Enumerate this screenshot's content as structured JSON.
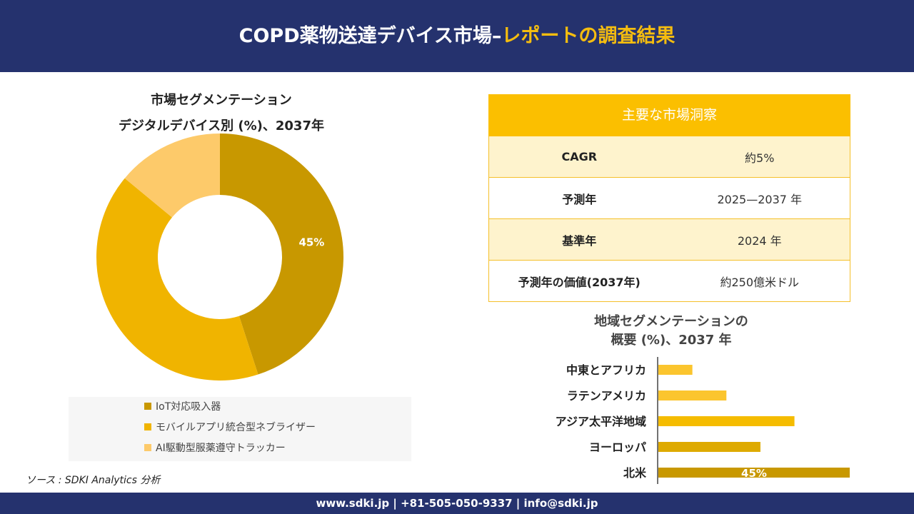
{
  "header": {
    "title_main": "COPD薬物送達デバイス市場–",
    "title_accent": "レポートの調査結果"
  },
  "donut": {
    "title_line1": "市場セグメンテーション",
    "title_line2": "デジタルデバイス別 (%)、2037年"
  },
  "legend": [
    "IoT対応吸入器",
    "モバイルアプリ統合型ネブライザー",
    "AI駆動型服薬遵守トラッカー"
  ],
  "insights": {
    "heading": "主要な市場洞察",
    "rows": [
      {
        "key": "CAGR",
        "value": "約5%"
      },
      {
        "key": "予測年",
        "value": "2025—2037 年"
      },
      {
        "key": "基準年",
        "value": "2024 年"
      },
      {
        "key": "予測年の価値(2037年)",
        "value": "約250億米ドル"
      }
    ]
  },
  "region": {
    "title_line1": "地域セグメンテーションの",
    "title_line2": "概要 (%)、2037 年"
  },
  "source": "ソース : SDKI Analytics 分析",
  "footer": "www.sdki.jp | +81-505-050-9337 | info@sdki.jp",
  "colors": {
    "header_bg": "#25326e",
    "accent": "#f5bd0f",
    "donut": [
      "#c89800",
      "#f0b400",
      "#fdca6a"
    ],
    "bars": [
      "#fbc52e",
      "#fbc52e",
      "#f5bc00",
      "#deaa00",
      "#c89800"
    ]
  },
  "chart_data": [
    {
      "type": "pie",
      "title": "市場セグメンテーション デジタルデバイス別 (%)、2037年",
      "categories": [
        "IoT対応吸入器",
        "モバイルアプリ統合型ネブライザー",
        "AI駆動型服薬遵守トラッカー"
      ],
      "values": [
        45,
        41,
        14
      ],
      "data_labels": [
        "45%",
        "",
        ""
      ],
      "legend": "bottom"
    },
    {
      "type": "bar",
      "orientation": "horizontal",
      "title": "地域セグメンテーションの 概要 (%)、2037 年",
      "categories": [
        "中東とアフリカ",
        "ラテンアメリカ",
        "アジア太平洋地域",
        "ヨーロッパ",
        "北米"
      ],
      "values": [
        8,
        16,
        32,
        24,
        45
      ],
      "data_labels": [
        "",
        "",
        "",
        "",
        "45%"
      ],
      "grid": false
    }
  ]
}
